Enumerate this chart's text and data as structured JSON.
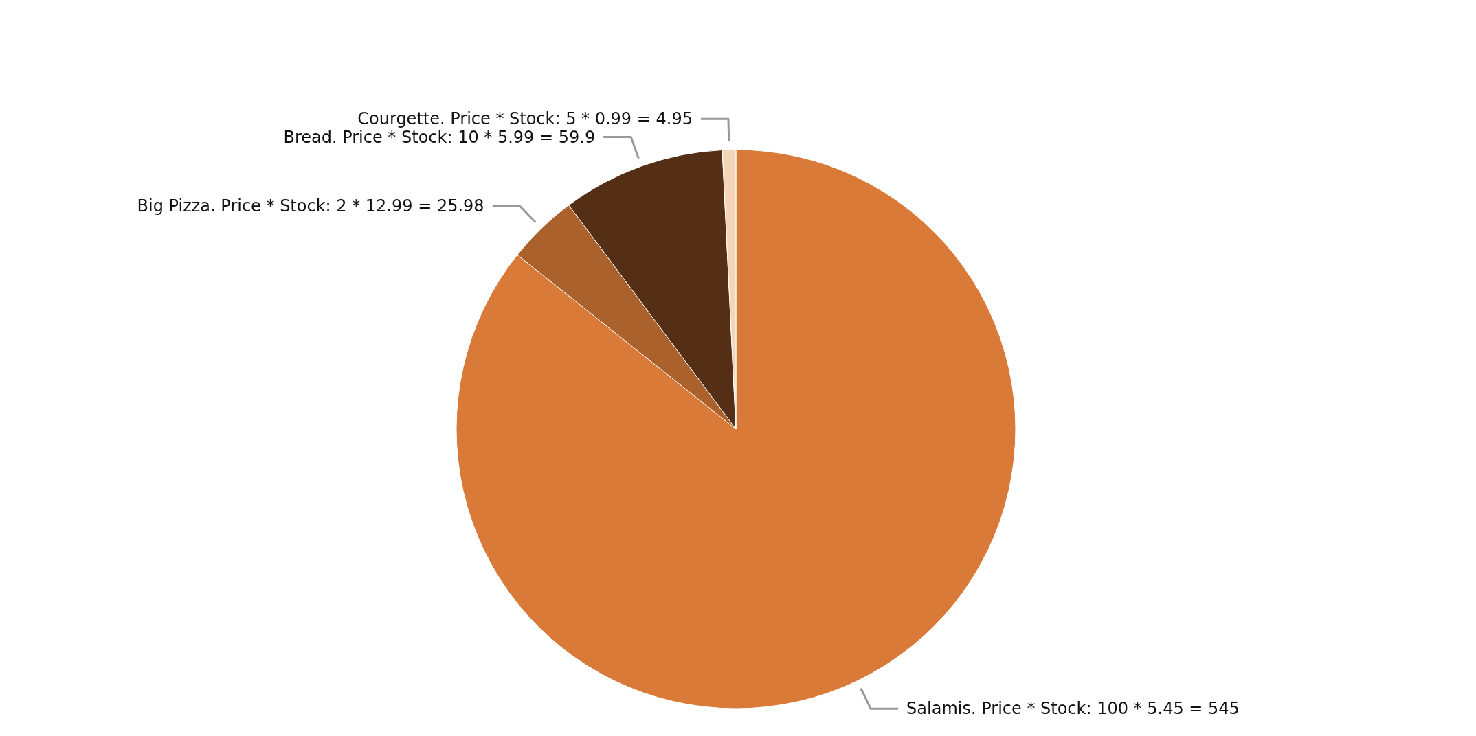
{
  "chart_data": {
    "type": "pie",
    "categories": [
      "Salamis. Price * Stock: 100 * 5.45 = 545",
      "Big Pizza. Price * Stock: 2 * 12.99 = 25.98",
      "Bread. Price * Stock: 10 * 5.99 = 59.9",
      "Courgette. Price * Stock: 5 * 0.99 = 4.95"
    ],
    "values": [
      545,
      25.98,
      59.9,
      4.95
    ],
    "colors": [
      "#d97a38",
      "#ab612c",
      "#552f15",
      "#f5d5b8"
    ],
    "legend": false
  }
}
